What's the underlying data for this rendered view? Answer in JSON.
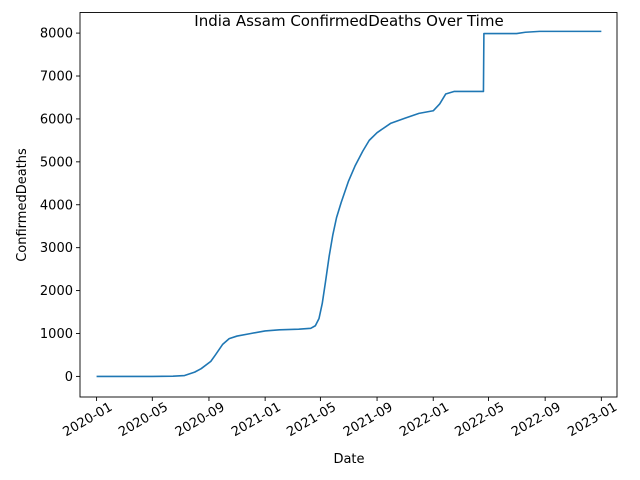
{
  "chart_data": {
    "type": "line",
    "title": "India Assam ConfirmedDeaths Over Time",
    "xlabel": "Date",
    "ylabel": "ConfirmedDeaths",
    "xlim": [
      "2019-11-26",
      "2023-02-04"
    ],
    "ylim": [
      -480,
      8480
    ],
    "grid": false,
    "legend": "none",
    "x_ticks": [
      "2020-01",
      "2020-05",
      "2020-09",
      "2021-01",
      "2021-05",
      "2021-09",
      "2022-01",
      "2022-05",
      "2022-09",
      "2023-01"
    ],
    "y_ticks": [
      0,
      1000,
      2000,
      3000,
      4000,
      5000,
      6000,
      7000,
      8000
    ],
    "series": [
      {
        "name": "ConfirmedDeaths",
        "color": "#1f77b4",
        "points": [
          [
            "2020-01-01",
            0
          ],
          [
            "2020-03-01",
            0
          ],
          [
            "2020-05-01",
            0
          ],
          [
            "2020-06-15",
            5
          ],
          [
            "2020-07-10",
            20
          ],
          [
            "2020-08-01",
            100
          ],
          [
            "2020-08-15",
            180
          ],
          [
            "2020-09-05",
            350
          ],
          [
            "2020-09-15",
            500
          ],
          [
            "2020-10-01",
            750
          ],
          [
            "2020-10-15",
            880
          ],
          [
            "2020-11-01",
            940
          ],
          [
            "2020-12-01",
            1000
          ],
          [
            "2021-01-01",
            1060
          ],
          [
            "2021-02-01",
            1085
          ],
          [
            "2021-03-15",
            1100
          ],
          [
            "2021-04-10",
            1120
          ],
          [
            "2021-04-20",
            1180
          ],
          [
            "2021-04-28",
            1350
          ],
          [
            "2021-05-05",
            1700
          ],
          [
            "2021-05-12",
            2200
          ],
          [
            "2021-05-20",
            2800
          ],
          [
            "2021-05-28",
            3300
          ],
          [
            "2021-06-05",
            3700
          ],
          [
            "2021-06-15",
            4050
          ],
          [
            "2021-07-01",
            4550
          ],
          [
            "2021-07-15",
            4900
          ],
          [
            "2021-08-01",
            5250
          ],
          [
            "2021-08-15",
            5500
          ],
          [
            "2021-09-01",
            5680
          ],
          [
            "2021-10-01",
            5900
          ],
          [
            "2021-11-01",
            6020
          ],
          [
            "2021-12-01",
            6130
          ],
          [
            "2022-01-01",
            6190
          ],
          [
            "2022-01-15",
            6350
          ],
          [
            "2022-01-28",
            6580
          ],
          [
            "2022-02-15",
            6640
          ],
          [
            "2022-03-15",
            6640
          ],
          [
            "2022-04-20",
            6640
          ],
          [
            "2022-04-21",
            7990
          ],
          [
            "2022-05-15",
            7990
          ],
          [
            "2022-07-01",
            7990
          ],
          [
            "2022-07-20",
            8020
          ],
          [
            "2022-08-20",
            8040
          ],
          [
            "2023-01-01",
            8040
          ]
        ]
      }
    ]
  }
}
